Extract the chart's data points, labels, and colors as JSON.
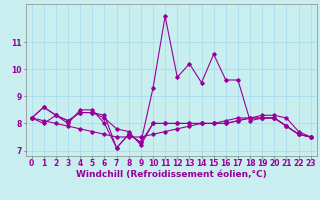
{
  "title": "",
  "xlabel": "Windchill (Refroidissement éolien,°C)",
  "ylabel": "",
  "bg_color": "#c8eef0",
  "line_color": "#990099",
  "grid_color": "#aaddee",
  "x_hours": [
    0,
    1,
    2,
    3,
    4,
    5,
    6,
    7,
    8,
    9,
    10,
    11,
    12,
    13,
    14,
    15,
    16,
    17,
    18,
    19,
    20,
    21,
    22,
    23
  ],
  "series": [
    [
      8.2,
      8.6,
      8.3,
      8.1,
      8.4,
      8.4,
      8.2,
      7.8,
      7.7,
      7.2,
      8.0,
      8.0,
      8.0,
      8.0,
      8.0,
      8.0,
      8.0,
      8.1,
      8.2,
      8.2,
      8.2,
      7.9,
      7.6,
      7.5
    ],
    [
      8.2,
      8.1,
      8.0,
      7.9,
      7.8,
      7.7,
      7.6,
      7.5,
      7.5,
      7.5,
      7.6,
      7.7,
      7.8,
      7.9,
      8.0,
      8.0,
      8.1,
      8.2,
      8.2,
      8.3,
      8.3,
      8.2,
      7.7,
      7.5
    ],
    [
      8.2,
      8.0,
      8.3,
      8.0,
      8.5,
      8.5,
      8.0,
      7.1,
      7.6,
      7.3,
      9.3,
      11.95,
      9.7,
      10.2,
      9.5,
      10.55,
      9.6,
      9.6,
      8.1,
      8.2,
      8.2,
      7.9,
      7.6,
      7.5
    ],
    [
      8.2,
      8.6,
      8.3,
      8.1,
      8.4,
      8.4,
      8.3,
      7.1,
      7.6,
      7.3,
      8.0,
      8.0,
      8.0,
      8.0,
      8.0,
      8.0,
      8.0,
      8.1,
      8.2,
      8.2,
      8.2,
      7.9,
      7.6,
      7.5
    ]
  ],
  "ylim": [
    6.8,
    12.4
  ],
  "yticks": [
    7,
    8,
    9,
    10,
    11
  ],
  "xticks": [
    0,
    1,
    2,
    3,
    4,
    5,
    6,
    7,
    8,
    9,
    10,
    11,
    12,
    13,
    14,
    15,
    16,
    17,
    18,
    19,
    20,
    21,
    22,
    23
  ],
  "tick_fontsize": 5.5,
  "xlabel_fontsize": 6.5
}
